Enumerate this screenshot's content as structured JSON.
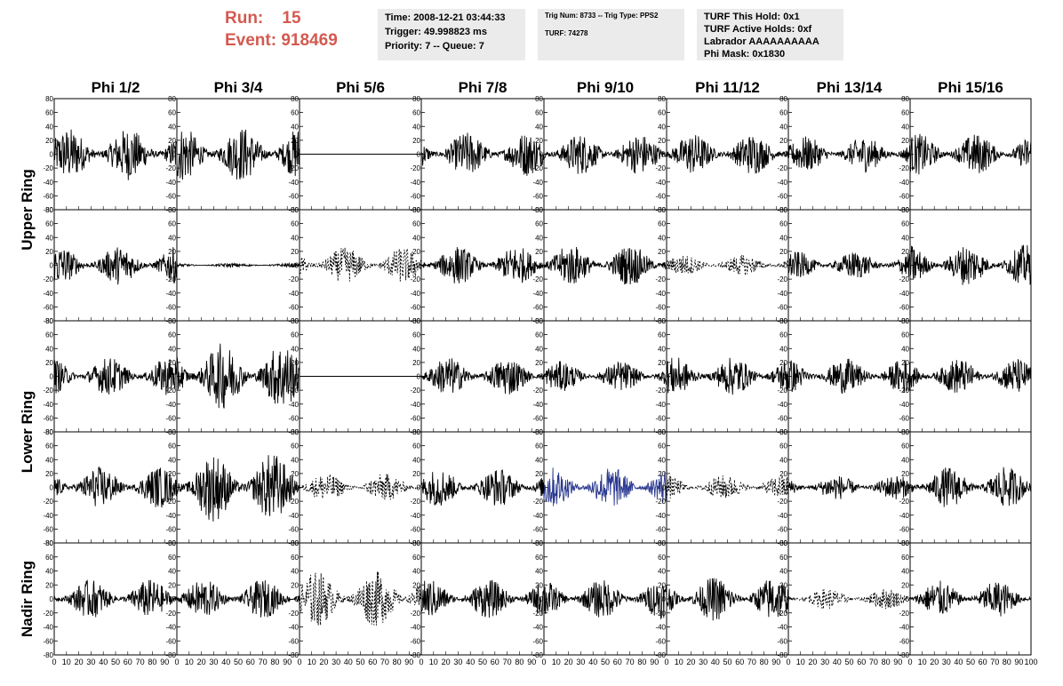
{
  "header": {
    "run_label": "Run:",
    "run_value": "15",
    "event_label": "Event:",
    "event_value": "918469"
  },
  "info_box_1": {
    "time": "Time: 2008-12-21 03:44:33",
    "trigger": "Trigger: 49.998823 ms",
    "priority": "Priority: 7 -- Queue: 7"
  },
  "info_box_2": {
    "trig": "Trig Num: 8733 -- Trig Type: PPS2",
    "turf": "TURF: 74278"
  },
  "info_box_3": {
    "hold": "TURF This Hold: 0x1",
    "active": "TURF Active Holds: 0xf",
    "labrador": "Labrador AAAAAAAAAA",
    "phimask": "Phi Mask: 0x1830"
  },
  "chart_data": {
    "type": "line",
    "columns": [
      "Phi 1/2",
      "Phi 3/4",
      "Phi 5/6",
      "Phi 7/8",
      "Phi 9/10",
      "Phi 11/12",
      "Phi 13/14",
      "Phi 15/16"
    ],
    "ring_labels": [
      "Upper Ring",
      "Lower Ring",
      "Nadir Ring"
    ],
    "xlim": [
      0,
      100
    ],
    "ylim": [
      -80,
      80
    ],
    "x_ticks": [
      0,
      10,
      20,
      30,
      40,
      50,
      60,
      70,
      80,
      90,
      100
    ],
    "y_ticks": [
      80,
      60,
      40,
      20,
      0,
      -20,
      -40,
      -60,
      -80
    ],
    "x_tick_labels": [
      "0",
      "10",
      "20",
      "30",
      "40",
      "50",
      "60",
      "70",
      "80",
      "90",
      "100"
    ],
    "line_color": "#000000",
    "highlight_color": "#2b3990",
    "rows": [
      {
        "amplitudes": [
          38,
          40,
          0,
          32,
          30,
          30,
          26,
          30
        ],
        "dashed": [
          false,
          false,
          false,
          false,
          false,
          false,
          false,
          false
        ],
        "highlight": [
          false,
          false,
          false,
          false,
          false,
          false,
          false,
          false
        ]
      },
      {
        "amplitudes": [
          28,
          3,
          26,
          28,
          30,
          15,
          20,
          30
        ],
        "dashed": [
          false,
          false,
          true,
          false,
          false,
          true,
          false,
          false
        ],
        "highlight": [
          false,
          false,
          false,
          false,
          false,
          false,
          false,
          false
        ]
      },
      {
        "amplitudes": [
          28,
          48,
          0,
          28,
          22,
          28,
          26,
          26
        ],
        "dashed": [
          false,
          false,
          false,
          false,
          false,
          false,
          false,
          false
        ],
        "highlight": [
          false,
          false,
          false,
          false,
          false,
          false,
          false,
          false
        ]
      },
      {
        "amplitudes": [
          30,
          50,
          20,
          28,
          30,
          18,
          18,
          30
        ],
        "dashed": [
          false,
          false,
          true,
          false,
          false,
          true,
          false,
          false
        ],
        "highlight": [
          false,
          false,
          false,
          false,
          true,
          false,
          false,
          false
        ]
      },
      {
        "amplitudes": [
          28,
          28,
          40,
          28,
          28,
          32,
          15,
          26
        ],
        "dashed": [
          false,
          false,
          true,
          false,
          false,
          false,
          true,
          false
        ],
        "highlight": [
          false,
          false,
          false,
          false,
          false,
          false,
          false,
          false
        ]
      }
    ]
  }
}
